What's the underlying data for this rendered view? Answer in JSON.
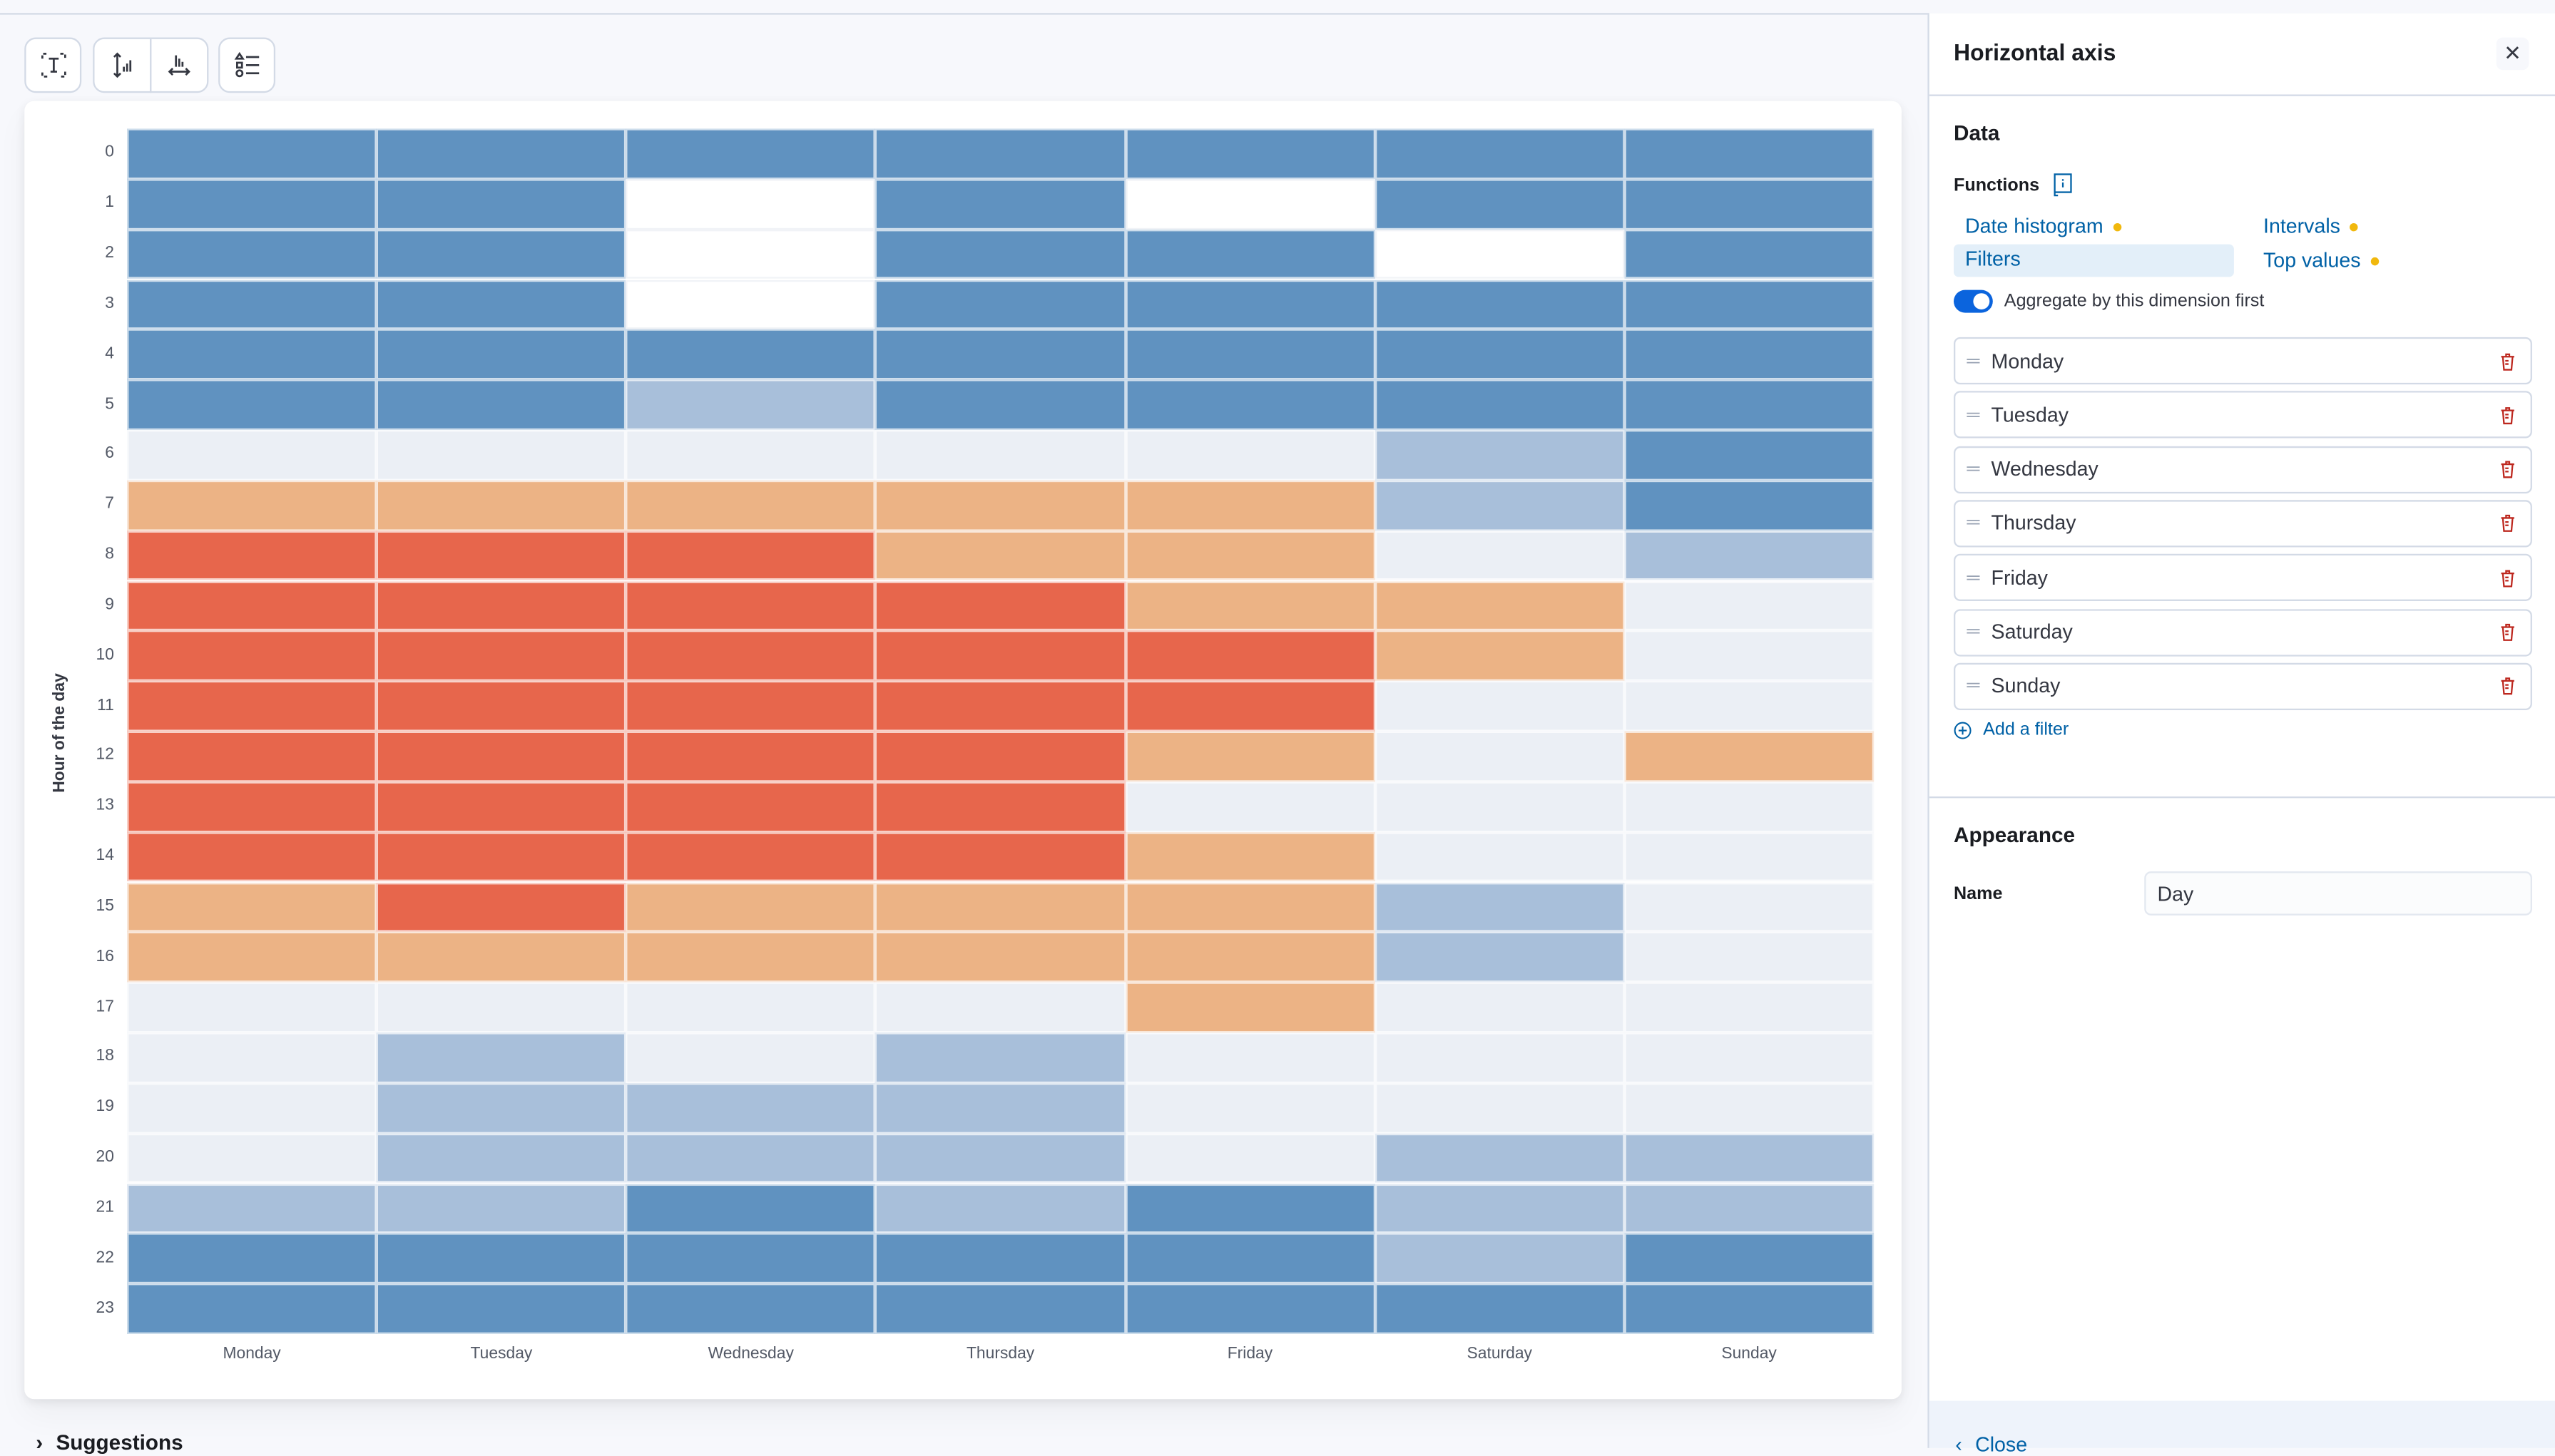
{
  "toolbar": {
    "buttons": [
      {
        "icon": "text-title-icon",
        "label": "Title and text"
      },
      {
        "icon": "vertical-axis-icon",
        "label": "Vertical axis"
      },
      {
        "icon": "horizontal-axis-icon",
        "label": "Horizontal axis"
      },
      {
        "icon": "legend-icon",
        "label": "Legend"
      }
    ]
  },
  "chart_data": {
    "type": "heatmap",
    "ylabel": "Hour of the day",
    "xlabel": "",
    "x": [
      "Monday",
      "Tuesday",
      "Wednesday",
      "Thursday",
      "Friday",
      "Saturday",
      "Sunday"
    ],
    "y": [
      "0",
      "1",
      "2",
      "3",
      "4",
      "5",
      "6",
      "7",
      "8",
      "9",
      "10",
      "11",
      "12",
      "13",
      "14",
      "15",
      "16",
      "17",
      "18",
      "19",
      "20",
      "21",
      "22",
      "23"
    ],
    "color_scale": [
      "#ebeff5",
      "#a8bfda",
      "#6092c0",
      "#ecb385",
      "#e7664c"
    ],
    "empty_color": "#ffffff",
    "grid": true,
    "legend": "none",
    "levels": [
      [
        2,
        2,
        2,
        2,
        2,
        2,
        2
      ],
      [
        2,
        2,
        null,
        2,
        null,
        2,
        2
      ],
      [
        2,
        2,
        null,
        2,
        2,
        null,
        2
      ],
      [
        2,
        2,
        null,
        2,
        2,
        2,
        2
      ],
      [
        2,
        2,
        2,
        2,
        2,
        2,
        2
      ],
      [
        2,
        2,
        1,
        2,
        2,
        2,
        2
      ],
      [
        0,
        0,
        0,
        0,
        0,
        1,
        2
      ],
      [
        3,
        3,
        3,
        3,
        3,
        1,
        2
      ],
      [
        4,
        4,
        4,
        3,
        3,
        0,
        1
      ],
      [
        4,
        4,
        4,
        4,
        3,
        3,
        0
      ],
      [
        4,
        4,
        4,
        4,
        4,
        3,
        0
      ],
      [
        4,
        4,
        4,
        4,
        4,
        0,
        0
      ],
      [
        4,
        4,
        4,
        4,
        3,
        0,
        3
      ],
      [
        4,
        4,
        4,
        4,
        0,
        0,
        0
      ],
      [
        4,
        4,
        4,
        4,
        3,
        0,
        0
      ],
      [
        3,
        4,
        3,
        3,
        3,
        1,
        0
      ],
      [
        3,
        3,
        3,
        3,
        3,
        1,
        0
      ],
      [
        0,
        0,
        0,
        0,
        3,
        0,
        0
      ],
      [
        0,
        1,
        0,
        1,
        0,
        0,
        0
      ],
      [
        0,
        1,
        1,
        1,
        0,
        0,
        0
      ],
      [
        0,
        1,
        1,
        1,
        0,
        1,
        1
      ],
      [
        1,
        1,
        2,
        1,
        2,
        1,
        1
      ],
      [
        2,
        2,
        2,
        2,
        2,
        1,
        2
      ],
      [
        2,
        2,
        2,
        2,
        2,
        2,
        2
      ]
    ]
  },
  "suggestions": {
    "label": "Suggestions"
  },
  "panel": {
    "title": "Horizontal axis",
    "data_heading": "Data",
    "functions_label": "Functions",
    "functions": [
      {
        "label": "Date histogram",
        "compatible_dot": true
      },
      {
        "label": "Intervals",
        "compatible_dot": true
      },
      {
        "label": "Filters",
        "selected": true
      },
      {
        "label": "Top values",
        "compatible_dot": true
      }
    ],
    "aggregate_toggle": {
      "label": "Aggregate by this dimension first",
      "on": true
    },
    "filters": [
      "Monday",
      "Tuesday",
      "Wednesday",
      "Thursday",
      "Friday",
      "Saturday",
      "Sunday"
    ],
    "add_filter": "Add a filter",
    "appearance_heading": "Appearance",
    "name_label": "Name",
    "name_value": "Day",
    "close_label": "Close"
  },
  "colors": {
    "accent": "#0061a6",
    "delete": "#bd271e",
    "toggle": "#0b64dd",
    "dot": "#f1b80d"
  }
}
